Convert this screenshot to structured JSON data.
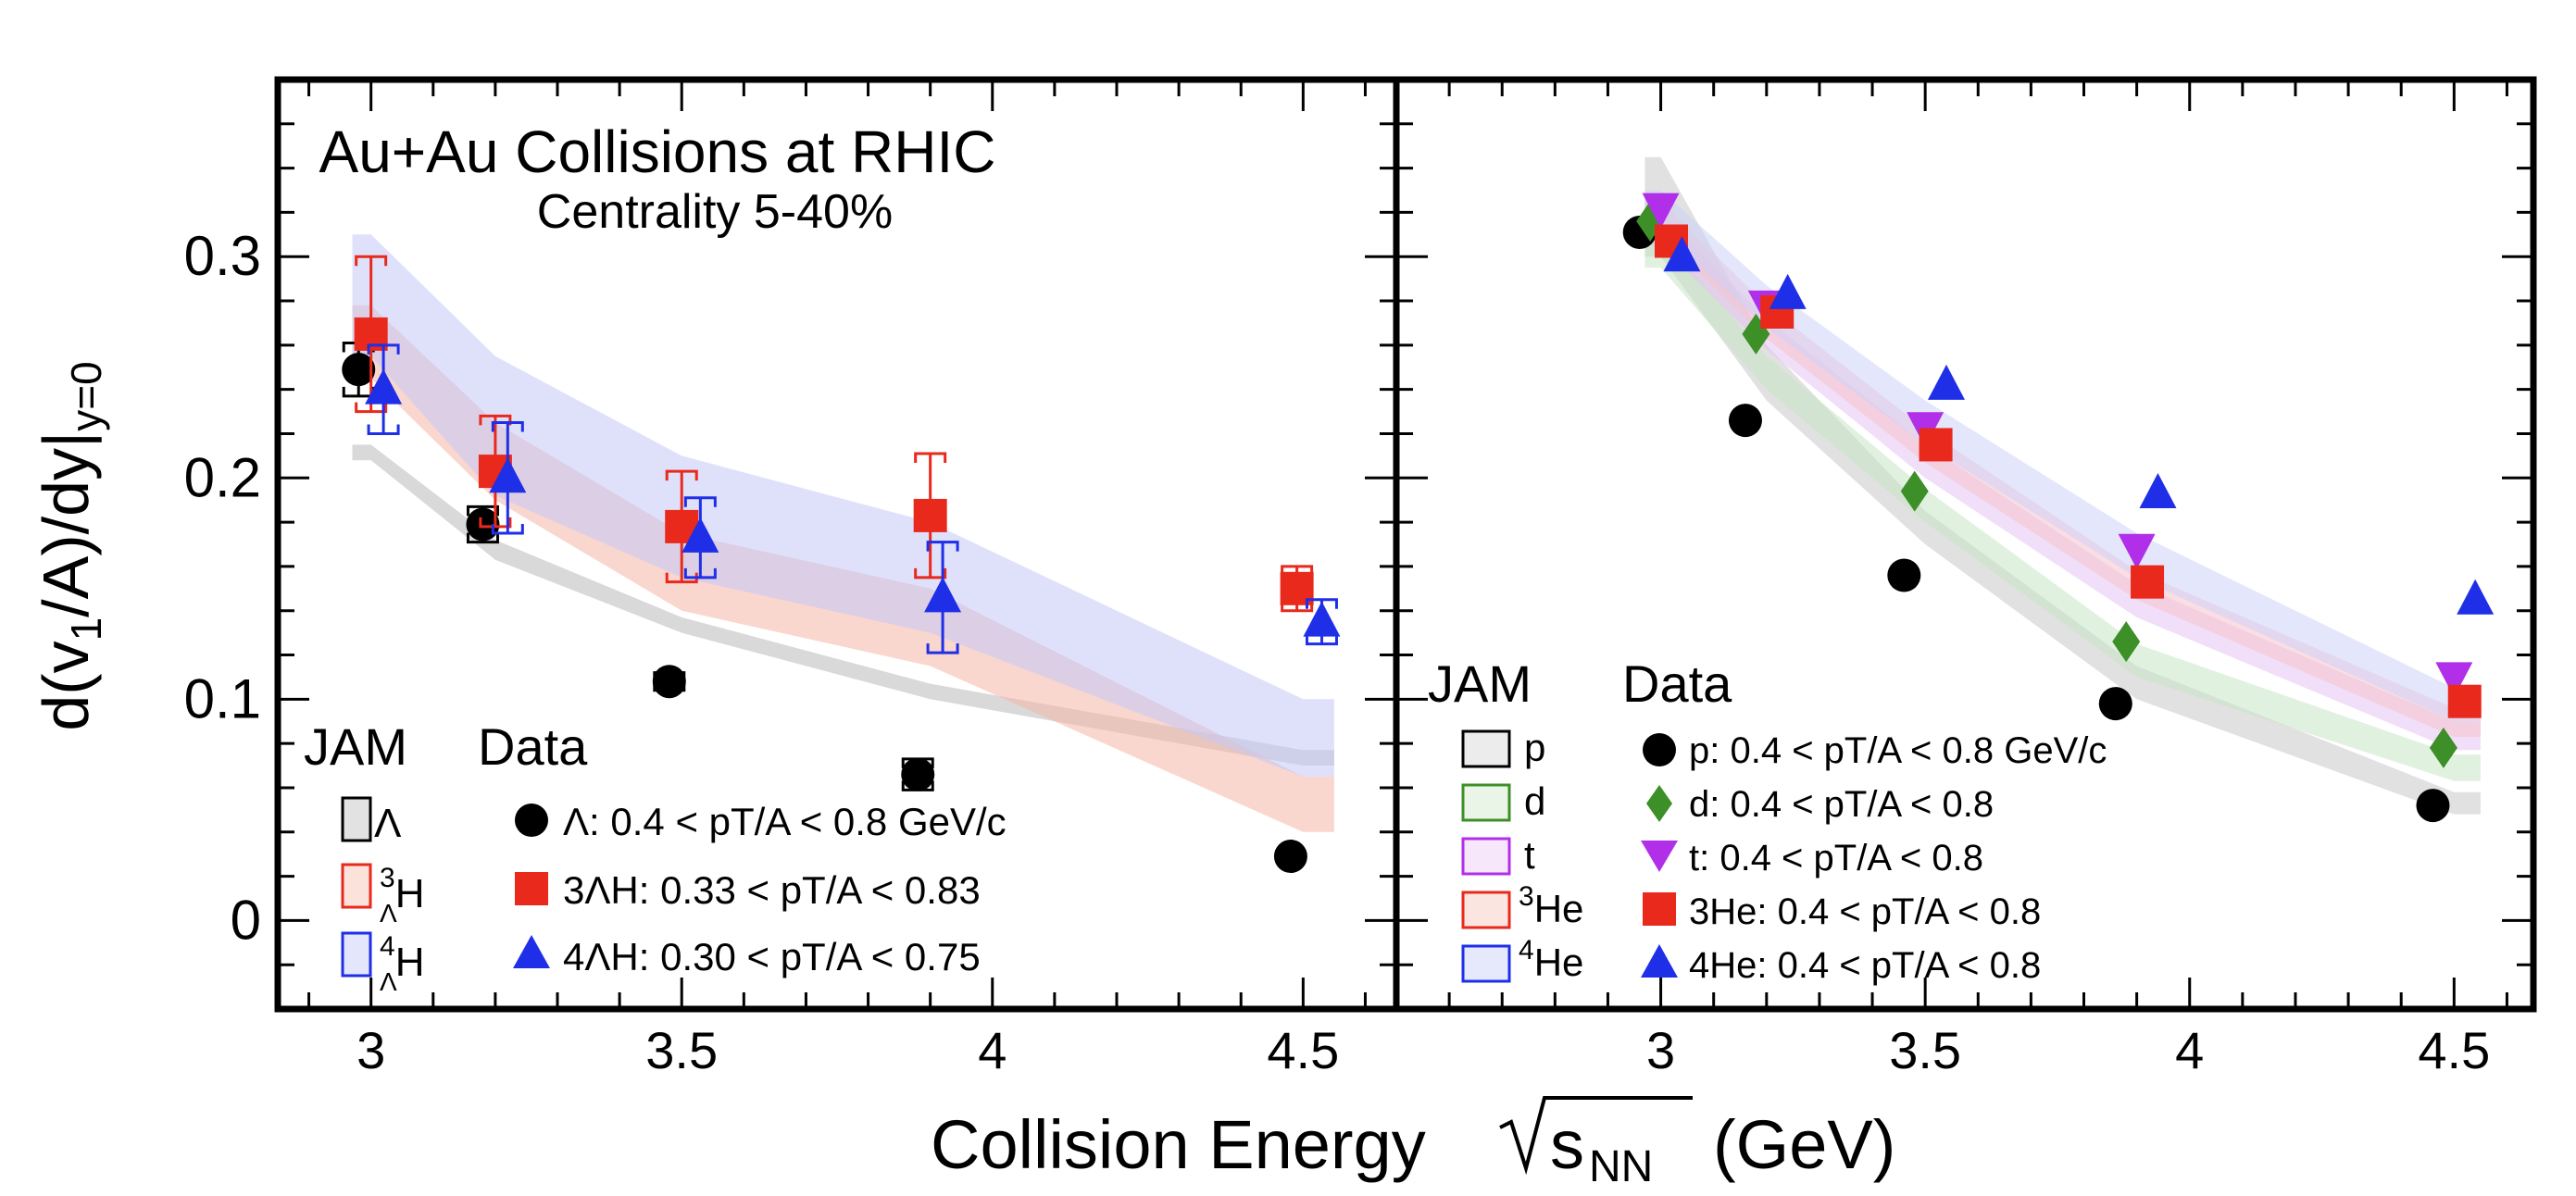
{
  "chart_data": [
    {
      "panel": "left",
      "type": "scatter",
      "title": "Au+Au Collisions at RHIC",
      "subtitle": "Centrality 5-40%",
      "ylabel": "d(v1/A)/dy|y=0",
      "ylabel_main": "d(v",
      "ylabel_sub1": "1",
      "ylabel_mid": "/A)/dy",
      "ylabel_bar": "|",
      "ylabel_sub2": "y=0",
      "xlim": [
        2.85,
        4.65
      ],
      "ylim": [
        -0.04,
        0.38
      ],
      "xticks": [
        3,
        3.5,
        4,
        4.5
      ],
      "xtick_labels": [
        "3",
        "3.5",
        "4",
        "4.5"
      ],
      "yticks": [
        0,
        0.1,
        0.2,
        0.3
      ],
      "ytick_labels": [
        "0",
        "0.1",
        "0.2",
        "0.3"
      ],
      "legend": {
        "jam_header": "JAM",
        "data_header": "Data",
        "entries": [
          {
            "jam_label": "Λ",
            "jam_sup": "",
            "jam_sub": "",
            "data_label": "Λ: 0.4 < pT/A < 0.8 GeV/c"
          },
          {
            "jam_label": "H",
            "jam_sup": "3",
            "jam_sub": "Λ",
            "data_label": "3ΛH: 0.33 < pT/A < 0.83"
          },
          {
            "jam_label": "H",
            "jam_sup": "4",
            "jam_sub": "Λ",
            "data_label": "4ΛH: 0.30 < pT/A < 0.75"
          }
        ]
      },
      "bands": [
        {
          "name": "Λ",
          "color": "#b9b9b9",
          "x": [
            2.97,
            3.0,
            3.2,
            3.5,
            3.9,
            4.5,
            4.55
          ],
          "lo": [
            0.208,
            0.208,
            0.163,
            0.13,
            0.1,
            0.07,
            0.07
          ],
          "hi": [
            0.215,
            0.215,
            0.172,
            0.137,
            0.107,
            0.077,
            0.077
          ]
        },
        {
          "name": "3ΛH",
          "color": "#f4b7a6",
          "x": [
            2.97,
            3.0,
            3.2,
            3.5,
            3.9,
            4.5,
            4.55
          ],
          "lo": [
            0.245,
            0.245,
            0.19,
            0.14,
            0.115,
            0.04,
            0.04
          ],
          "hi": [
            0.278,
            0.278,
            0.225,
            0.175,
            0.15,
            0.065,
            0.065
          ]
        },
        {
          "name": "4ΛH",
          "color": "#c4c9f7",
          "x": [
            2.97,
            3.0,
            3.2,
            3.5,
            3.9,
            4.5,
            4.55
          ],
          "lo": [
            0.255,
            0.255,
            0.192,
            0.155,
            0.13,
            0.065,
            0.065
          ],
          "hi": [
            0.31,
            0.31,
            0.255,
            0.21,
            0.18,
            0.1,
            0.1
          ]
        }
      ],
      "series": [
        {
          "name": "Λ",
          "marker": "circle",
          "color": "#000000",
          "x": [
            2.98,
            3.18,
            3.48,
            3.88,
            4.48
          ],
          "y": [
            0.249,
            0.179,
            0.108,
            0.066,
            0.029
          ],
          "syst": [
            0.012,
            0.008,
            0.004,
            0.007,
            0.0
          ],
          "box_color": "#000000"
        },
        {
          "name": "3ΛH",
          "marker": "square",
          "color": "#e8291c",
          "x": [
            3.0,
            3.2,
            3.5,
            3.9,
            4.49
          ],
          "y": [
            0.265,
            0.203,
            0.178,
            0.183,
            0.15
          ],
          "syst": [
            0.035,
            0.025,
            0.025,
            0.028,
            0.01
          ],
          "box_color": "#e8291c"
        },
        {
          "name": "4ΛH",
          "marker": "triangle-up",
          "color": "#1f2fe8",
          "x": [
            3.02,
            3.22,
            3.53,
            3.92,
            4.53
          ],
          "y": [
            0.24,
            0.2,
            0.173,
            0.146,
            0.135
          ],
          "syst": [
            0.02,
            0.025,
            0.018,
            0.025,
            0.01
          ],
          "box_color": "#1f2fe8"
        }
      ]
    },
    {
      "panel": "right",
      "type": "scatter",
      "xlim": [
        2.5,
        4.65
      ],
      "ylim": [
        -0.04,
        0.38
      ],
      "xticks": [
        3,
        3.5,
        4,
        4.5
      ],
      "xtick_labels": [
        "3",
        "3.5",
        "4",
        "4.5"
      ],
      "legend": {
        "jam_header": "JAM",
        "data_header": "Data",
        "entries": [
          {
            "jam_label": "p",
            "jam_sup": "",
            "data_label": "p: 0.4 < pT/A < 0.8 GeV/c"
          },
          {
            "jam_label": "d",
            "jam_sup": "",
            "data_label": "d: 0.4 < pT/A < 0.8"
          },
          {
            "jam_label": "t",
            "jam_sup": "",
            "data_label": "t: 0.4 < pT/A < 0.8"
          },
          {
            "jam_label": "He",
            "jam_sup": "3",
            "data_label": "3He: 0.4 < pT/A < 0.8"
          },
          {
            "jam_label": "He",
            "jam_sup": "4",
            "data_label": "4He: 0.4 < pT/A < 0.8"
          }
        ]
      },
      "bands": [
        {
          "name": "p",
          "color": "#c8c8c8",
          "x": [
            2.97,
            3.0,
            3.2,
            3.5,
            3.9,
            4.5,
            4.55
          ],
          "lo": [
            0.3,
            0.3,
            0.235,
            0.17,
            0.1,
            0.048,
            0.048
          ],
          "hi": [
            0.345,
            0.345,
            0.26,
            0.185,
            0.115,
            0.058,
            0.058
          ]
        },
        {
          "name": "d",
          "color": "#c9e6c6",
          "x": [
            2.97,
            3.0,
            3.2,
            3.5,
            3.9,
            4.5,
            4.55
          ],
          "lo": [
            0.295,
            0.295,
            0.24,
            0.18,
            0.11,
            0.063,
            0.063
          ],
          "hi": [
            0.31,
            0.31,
            0.255,
            0.195,
            0.125,
            0.075,
            0.075
          ]
        },
        {
          "name": "t",
          "color": "#e6c3f3",
          "x": [
            2.97,
            3.0,
            3.2,
            3.5,
            3.9,
            4.5,
            4.55
          ],
          "lo": [
            0.305,
            0.305,
            0.258,
            0.2,
            0.137,
            0.077,
            0.077
          ],
          "hi": [
            0.32,
            0.32,
            0.272,
            0.215,
            0.152,
            0.09,
            0.09
          ]
        },
        {
          "name": "3He",
          "color": "#f6c3cc",
          "x": [
            2.97,
            3.0,
            3.2,
            3.5,
            3.9,
            4.5,
            4.55
          ],
          "lo": [
            0.31,
            0.31,
            0.263,
            0.207,
            0.145,
            0.083,
            0.083
          ],
          "hi": [
            0.325,
            0.325,
            0.278,
            0.222,
            0.158,
            0.096,
            0.096
          ]
        },
        {
          "name": "4He",
          "color": "#cdd2f7",
          "x": [
            2.97,
            3.0,
            3.2,
            3.5,
            3.9,
            4.5,
            4.55
          ],
          "lo": [
            0.312,
            0.312,
            0.268,
            0.215,
            0.155,
            0.09,
            0.09
          ],
          "hi": [
            0.33,
            0.33,
            0.287,
            0.235,
            0.175,
            0.105,
            0.105
          ]
        }
      ],
      "series": [
        {
          "name": "p",
          "marker": "circle",
          "color": "#000000",
          "x": [
            2.96,
            3.16,
            3.46,
            3.86,
            4.46
          ],
          "y": [
            0.311,
            0.226,
            0.156,
            0.098,
            0.052
          ]
        },
        {
          "name": "d",
          "marker": "diamond",
          "color": "#3d8f27",
          "x": [
            2.98,
            3.18,
            3.48,
            3.88,
            4.48
          ],
          "y": [
            0.316,
            0.265,
            0.194,
            0.126,
            0.078
          ]
        },
        {
          "name": "t",
          "marker": "triangle-down",
          "color": "#b12fe8",
          "x": [
            3.0,
            3.2,
            3.5,
            3.9,
            4.5
          ],
          "y": [
            0.322,
            0.278,
            0.223,
            0.168,
            0.11
          ]
        },
        {
          "name": "3He",
          "marker": "square",
          "color": "#e8291c",
          "x": [
            3.02,
            3.22,
            3.52,
            3.92,
            4.52
          ],
          "y": [
            0.307,
            0.275,
            0.215,
            0.153,
            0.099
          ]
        },
        {
          "name": "4He",
          "marker": "triangle-up",
          "color": "#1f2fe8",
          "x": [
            3.04,
            3.24,
            3.54,
            3.94,
            4.54
          ],
          "y": [
            0.3,
            0.283,
            0.242,
            0.193,
            0.145
          ]
        }
      ]
    }
  ],
  "shared_xlabel_main": "Collision Energy",
  "shared_xlabel_sub": "NN",
  "shared_xlabel_s": "s",
  "shared_xlabel_unit": "(GeV)"
}
